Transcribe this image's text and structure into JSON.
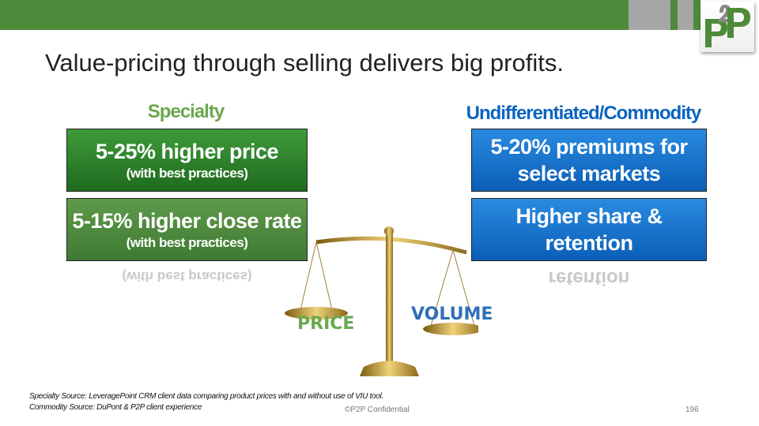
{
  "title": "Value-pricing through selling delivers big profits.",
  "logo": {
    "text": "P2P"
  },
  "colors": {
    "green": "#4e8a3a",
    "blue": "#0a64c0",
    "bar_gray": "#a6a6a6"
  },
  "left": {
    "heading": "Specialty",
    "boxes": [
      {
        "main": "5-25% higher price",
        "sub": "(with best practices)"
      },
      {
        "main": "5-15% higher close rate",
        "sub": "(with best practices)"
      }
    ],
    "reflection": "(with best practices)"
  },
  "right": {
    "heading": "Undifferentiated/Commodity",
    "boxes": [
      {
        "line1": "5-20% premiums for",
        "line2": "select markets"
      },
      {
        "line1": "Higher share &",
        "line2": "retention"
      }
    ],
    "reflection": "retention"
  },
  "scale": {
    "icon": "balance-scale-icon",
    "left_label": "PRICE",
    "right_label": "VOLUME"
  },
  "footer": {
    "source1": "Specialty Source: LeveragePoint CRM client data comparing product prices with and without use of VIU tool.",
    "source2": "Commodity Source: DuPont & P2P client experience",
    "confidential": "©P2P Confidential",
    "page": "196"
  }
}
